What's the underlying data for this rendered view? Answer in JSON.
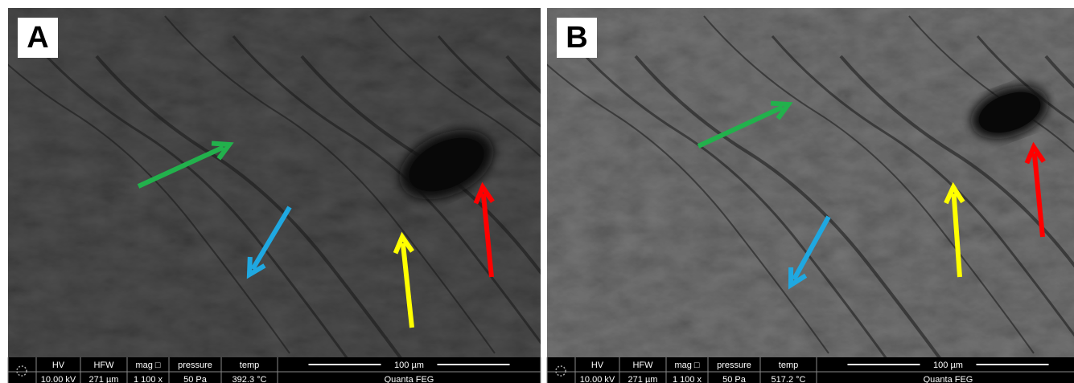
{
  "panels": [
    {
      "label": "A",
      "info": {
        "headers": [
          "HV",
          "HFW",
          "mag □",
          "pressure",
          "temp"
        ],
        "values": [
          "10.00 kV",
          "271 µm",
          "1 100 x",
          "50 Pa",
          "392.3 °C"
        ],
        "scale": "100 µm",
        "instrument": "Quanta FEG"
      }
    },
    {
      "label": "B",
      "info": {
        "headers": [
          "HV",
          "HFW",
          "mag □",
          "pressure",
          "temp"
        ],
        "values": [
          "10.00 kV",
          "271 µm",
          "1 100 x",
          "50 Pa",
          "517.2 °C"
        ],
        "scale": "100 µm",
        "instrument": "Quanta FEG"
      }
    }
  ]
}
